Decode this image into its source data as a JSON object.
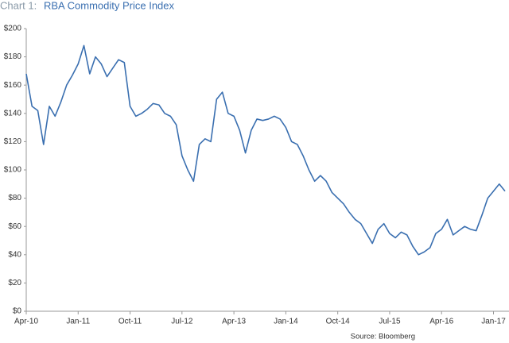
{
  "chart_data": {
    "type": "line",
    "chart_label": "Chart 1:",
    "title": "RBA Commodity Price Index",
    "source": "Source: Bloomberg",
    "x": [
      "2010-04",
      "2010-05",
      "2010-06",
      "2010-07",
      "2010-08",
      "2010-09",
      "2010-10",
      "2010-11",
      "2010-12",
      "2011-01",
      "2011-02",
      "2011-03",
      "2011-04",
      "2011-05",
      "2011-06",
      "2011-07",
      "2011-08",
      "2011-09",
      "2011-10",
      "2011-11",
      "2011-12",
      "2012-01",
      "2012-02",
      "2012-03",
      "2012-04",
      "2012-05",
      "2012-06",
      "2012-07",
      "2012-08",
      "2012-09",
      "2012-10",
      "2012-11",
      "2012-12",
      "2013-01",
      "2013-02",
      "2013-03",
      "2013-04",
      "2013-05",
      "2013-06",
      "2013-07",
      "2013-08",
      "2013-09",
      "2013-10",
      "2013-11",
      "2013-12",
      "2014-01",
      "2014-02",
      "2014-03",
      "2014-04",
      "2014-05",
      "2014-06",
      "2014-07",
      "2014-08",
      "2014-09",
      "2014-10",
      "2014-11",
      "2014-12",
      "2015-01",
      "2015-02",
      "2015-03",
      "2015-04",
      "2015-05",
      "2015-06",
      "2015-07",
      "2015-08",
      "2015-09",
      "2015-10",
      "2015-11",
      "2015-12",
      "2016-01",
      "2016-02",
      "2016-03",
      "2016-04",
      "2016-05",
      "2016-06",
      "2016-07",
      "2016-08",
      "2016-09",
      "2016-10",
      "2016-11",
      "2016-12",
      "2017-01",
      "2017-02",
      "2017-03"
    ],
    "series": [
      {
        "name": "RBA Commodity Price Index",
        "color": "#3a6fb0",
        "values": [
          168,
          145,
          142,
          118,
          145,
          138,
          148,
          160,
          167,
          175,
          188,
          168,
          180,
          175,
          166,
          172,
          178,
          176,
          145,
          138,
          140,
          143,
          147,
          146,
          140,
          138,
          132,
          110,
          100,
          92,
          118,
          122,
          120,
          150,
          155,
          140,
          138,
          128,
          112,
          128,
          136,
          135,
          136,
          138,
          136,
          130,
          120,
          118,
          110,
          100,
          92,
          96,
          92,
          84,
          80,
          76,
          70,
          65,
          62,
          55,
          48,
          58,
          62,
          55,
          52,
          56,
          54,
          46,
          40,
          42,
          45,
          55,
          58,
          65,
          54,
          57,
          60,
          58,
          57,
          68,
          80,
          85,
          90,
          85
        ]
      }
    ],
    "xlim": [
      "2010-04",
      "2017-03"
    ],
    "xticks": [
      {
        "value": "2010-04",
        "label": "Apr-10"
      },
      {
        "value": "2011-01",
        "label": "Jan-11"
      },
      {
        "value": "2011-10",
        "label": "Oct-11"
      },
      {
        "value": "2012-07",
        "label": "Jul-12"
      },
      {
        "value": "2013-04",
        "label": "Apr-13"
      },
      {
        "value": "2014-01",
        "label": "Jan-14"
      },
      {
        "value": "2014-10",
        "label": "Oct-14"
      },
      {
        "value": "2015-07",
        "label": "Jul-15"
      },
      {
        "value": "2016-04",
        "label": "Apr-16"
      },
      {
        "value": "2017-01",
        "label": "Jan-17"
      }
    ],
    "ylim": [
      0,
      200
    ],
    "yticks": [
      {
        "value": 0,
        "label": "$0"
      },
      {
        "value": 20,
        "label": "$20"
      },
      {
        "value": 40,
        "label": "$40"
      },
      {
        "value": 60,
        "label": "$60"
      },
      {
        "value": 80,
        "label": "$80"
      },
      {
        "value": 100,
        "label": "$100"
      },
      {
        "value": 120,
        "label": "$120"
      },
      {
        "value": 140,
        "label": "$140"
      },
      {
        "value": 160,
        "label": "$160"
      },
      {
        "value": 180,
        "label": "$180"
      },
      {
        "value": 200,
        "label": "$200"
      }
    ],
    "grid": false
  }
}
